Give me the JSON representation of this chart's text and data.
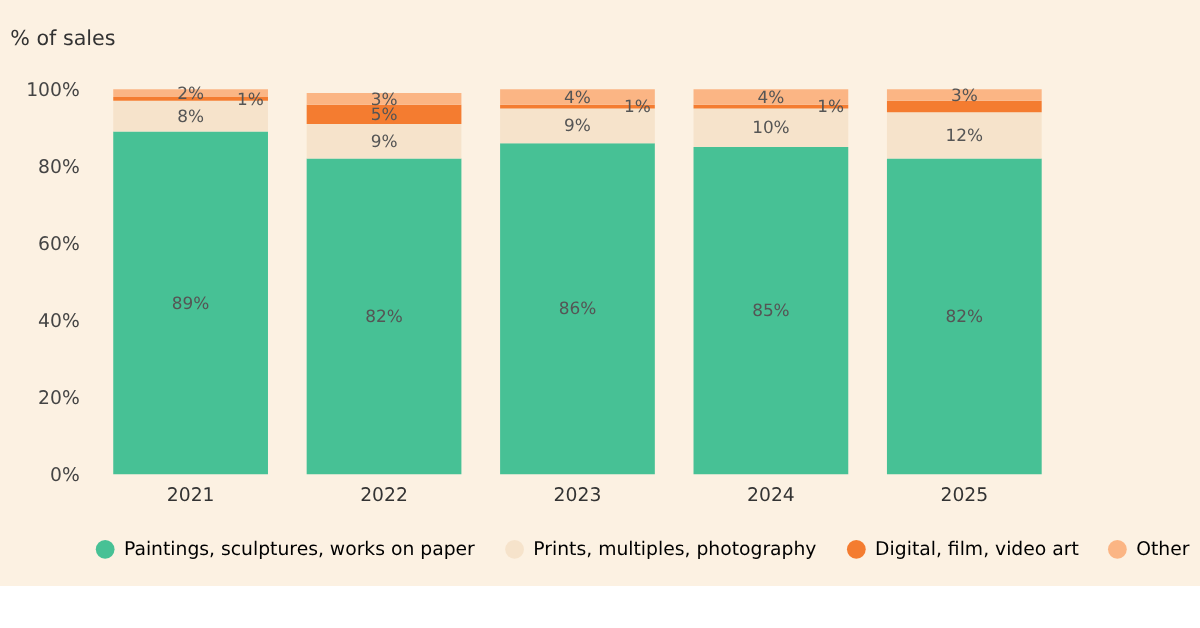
{
  "chart_data": {
    "type": "bar",
    "stacked": true,
    "ylabel": "% of sales",
    "categories": [
      "2021",
      "2022",
      "2023",
      "2024",
      "2025"
    ],
    "series": [
      {
        "name": "Paintings, sculptures, works on paper",
        "color": "#47c195",
        "values": [
          89,
          82,
          86,
          85,
          82
        ],
        "value_labels": [
          "89%",
          "82%",
          "86%",
          "85%",
          "82%"
        ]
      },
      {
        "name": "Prints, multiples, photography",
        "color": "#f6e3cb",
        "values": [
          8,
          9,
          9,
          10,
          12
        ],
        "value_labels": [
          "8%",
          "9%",
          "9%",
          "10%",
          "12%"
        ]
      },
      {
        "name": "Digital, film, video art",
        "color": "#f47c30",
        "values": [
          1,
          5,
          1,
          1,
          3
        ],
        "value_labels": [
          "1%",
          "5%",
          "1%",
          "1%",
          null
        ]
      },
      {
        "name": "Other",
        "color": "#fbb584",
        "values": [
          2,
          3,
          4,
          4,
          3
        ],
        "value_labels": [
          "2%",
          "3%",
          "4%",
          "4%",
          "3%"
        ]
      }
    ],
    "ylim": [
      0,
      100
    ],
    "yticks": [
      {
        "value": 0,
        "label": "0%"
      },
      {
        "value": 20,
        "label": "20%"
      },
      {
        "value": 40,
        "label": "40%"
      },
      {
        "value": 60,
        "label": "60%"
      },
      {
        "value": 80,
        "label": "80%"
      },
      {
        "value": 100,
        "label": "100%"
      }
    ],
    "grid": false,
    "legend": "bottom"
  }
}
